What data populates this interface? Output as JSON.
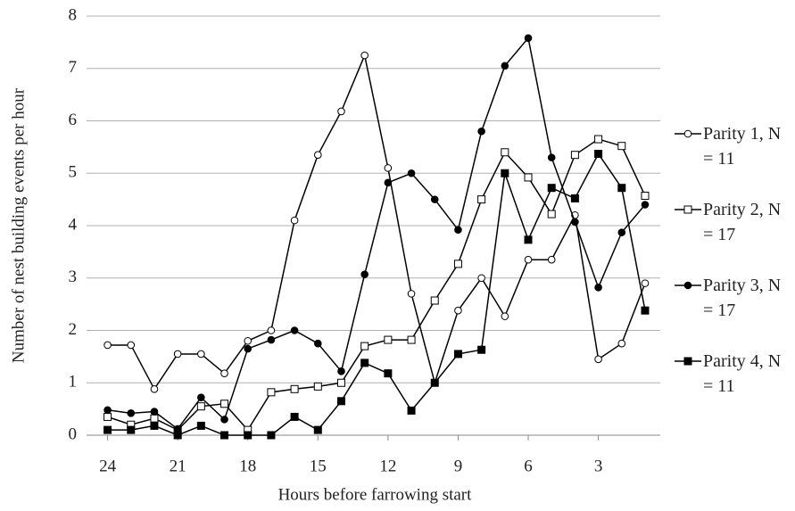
{
  "chart_data": {
    "type": "line",
    "xlabel": "Hours before farrowing start",
    "ylabel": "Number of nest building events per hour",
    "x": [
      24,
      23,
      22,
      21,
      20,
      19,
      18,
      17,
      16,
      15,
      14,
      13,
      12,
      11,
      10,
      9,
      8,
      7,
      6,
      5,
      4,
      3,
      2,
      1
    ],
    "xlim": [
      24.9,
      0.35
    ],
    "xticks": [
      24,
      21,
      18,
      15,
      12,
      9,
      6,
      3
    ],
    "ylim": [
      0,
      8
    ],
    "yticks": [
      0,
      1,
      2,
      3,
      4,
      5,
      6,
      7,
      8
    ],
    "grid": true,
    "legend": "right",
    "series": [
      {
        "name": "Parity 1, N = 11",
        "color": "#000000",
        "marker": "circle",
        "filled": false,
        "values": [
          1.72,
          1.72,
          0.88,
          1.55,
          1.55,
          1.18,
          1.8,
          2.0,
          4.1,
          5.35,
          6.18,
          7.25,
          5.1,
          2.7,
          1.0,
          2.38,
          3.0,
          2.27,
          3.35,
          3.35,
          4.2,
          1.45,
          1.75,
          2.9
        ]
      },
      {
        "name": "Parity 2, N = 17",
        "color": "#000000",
        "marker": "square",
        "filled": false,
        "values": [
          0.35,
          0.2,
          0.32,
          0.1,
          0.55,
          0.6,
          0.1,
          0.82,
          0.88,
          0.93,
          1.0,
          1.7,
          1.82,
          1.82,
          2.57,
          3.27,
          4.5,
          5.4,
          4.92,
          4.22,
          5.35,
          5.65,
          5.52,
          4.57
        ]
      },
      {
        "name": "Parity 3, N = 17",
        "color": "#000000",
        "marker": "circle",
        "filled": true,
        "values": [
          0.48,
          0.42,
          0.45,
          0.12,
          0.72,
          0.3,
          1.65,
          1.82,
          2.0,
          1.75,
          1.22,
          3.07,
          4.82,
          5.0,
          4.5,
          3.92,
          5.8,
          7.05,
          7.58,
          5.3,
          4.07,
          2.82,
          3.87,
          4.4
        ]
      },
      {
        "name": "Parity 4, N = 11",
        "color": "#000000",
        "marker": "square",
        "filled": true,
        "values": [
          0.1,
          0.1,
          0.18,
          0.0,
          0.18,
          0.0,
          0.0,
          0.0,
          0.35,
          0.1,
          0.65,
          1.38,
          1.18,
          0.47,
          1.0,
          1.55,
          1.63,
          5.0,
          3.73,
          4.72,
          4.52,
          5.37,
          4.72,
          2.38
        ]
      }
    ]
  }
}
